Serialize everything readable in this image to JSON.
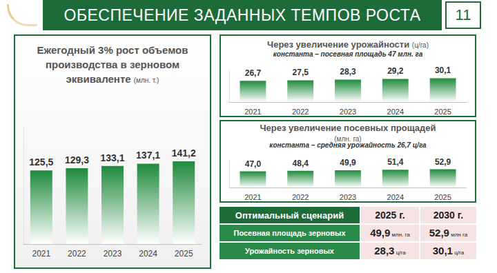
{
  "header": {
    "title": "ОБЕСПЕЧЕНИЕ ЗАДАННЫХ ТЕМПОВ РОСТА",
    "page": "11"
  },
  "chart_data": [
    {
      "type": "bar",
      "title": "Ежегодный 3% рост объемов производства в зерновом эквиваленте",
      "unit": "(млн. т.)",
      "categories": [
        "2021",
        "2022",
        "2023",
        "2024",
        "2025"
      ],
      "values": [
        125.5,
        129.3,
        133.1,
        137.1,
        141.2
      ],
      "value_labels": [
        "125,5",
        "129,3",
        "133,1",
        "137,1",
        "141,2"
      ],
      "color": "#1f8a3c",
      "ylim": [
        0,
        200
      ],
      "grid": false,
      "tick_labels": "x",
      "data_labels": true
    },
    {
      "type": "bar",
      "title": "Через увеличение урожайности",
      "unit": "(ц/га)",
      "subtitle": "константа – посевная площадь 47 млн. га",
      "categories": [
        "2021",
        "2022",
        "2023",
        "2024",
        "2025"
      ],
      "values": [
        26.7,
        27.5,
        28.3,
        29.2,
        30.1
      ],
      "value_labels": [
        "26,7",
        "27,5",
        "28,3",
        "29,2",
        "30,1"
      ],
      "color": "#1f8a3c",
      "ylim": [
        0,
        40
      ],
      "grid": false,
      "tick_labels": "x",
      "data_labels": true
    },
    {
      "type": "bar",
      "title": "Через увеличение посевных прощадей",
      "unit": "(млн. га)",
      "subtitle": "константа – средняя урожайность 26,7 ц/га",
      "categories": [
        "2021",
        "2022",
        "2023",
        "2024",
        "2025"
      ],
      "values": [
        47.0,
        48.4,
        49.9,
        51.4,
        52.9
      ],
      "value_labels": [
        "47,0",
        "48,4",
        "49,9",
        "51,4",
        "52,9"
      ],
      "color": "#1f8a3c",
      "ylim": [
        0,
        80
      ],
      "grid": false,
      "tick_labels": "x",
      "data_labels": true
    }
  ],
  "table": {
    "header": [
      "Оптимальный сценарий",
      "2025 г.",
      "2030 г."
    ],
    "rows": [
      [
        "Посевная площадь зерновых",
        {
          "value": "49,9",
          "unit": "млн. га"
        },
        {
          "value": "52,9",
          "unit": "млн га"
        }
      ],
      [
        "Урожайность зерновых",
        {
          "value": "28,3",
          "unit": "ц/га"
        },
        {
          "value": "30,1",
          "unit": "ц/га"
        }
      ]
    ]
  }
}
